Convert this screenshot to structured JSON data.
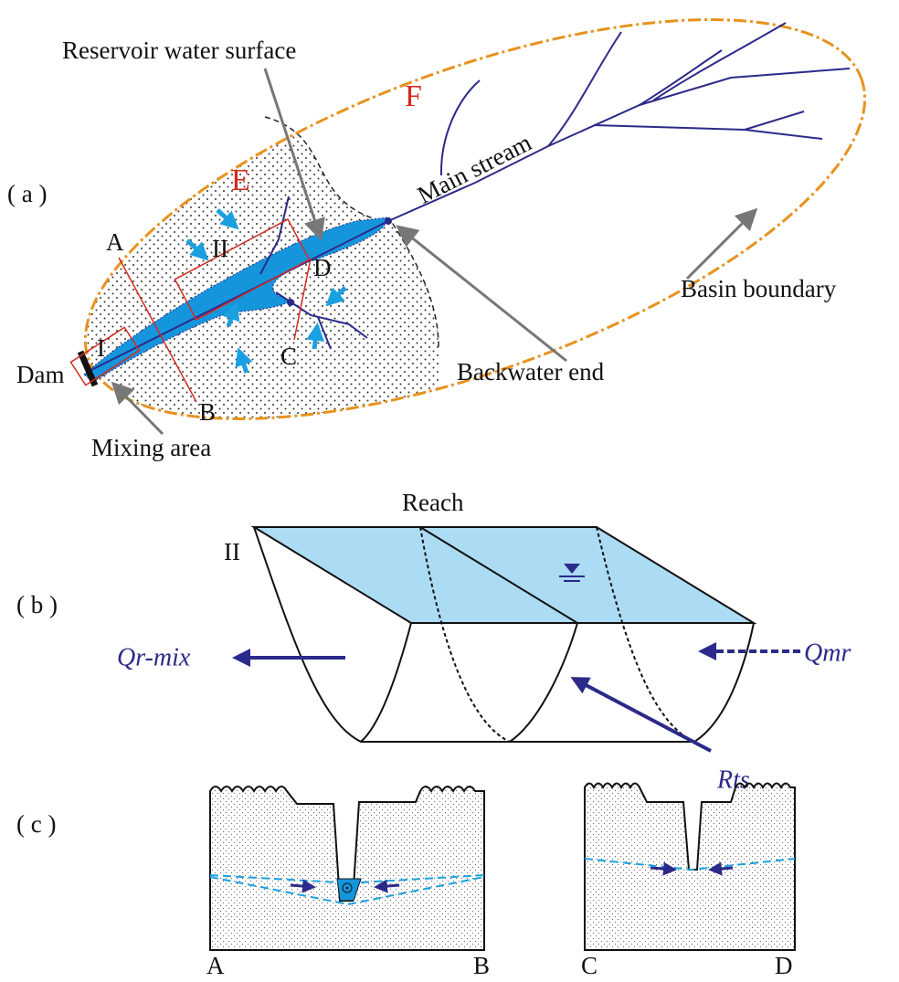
{
  "panel_a": {
    "label": "( a )",
    "zones": {
      "E": "E",
      "F": "F"
    },
    "sections": {
      "A": "A",
      "B": "B",
      "C": "C",
      "D": "D",
      "I": "I",
      "II": "II"
    },
    "annotations": {
      "reservoir_water_surface": "Reservoir water surface",
      "main_stream": "Main stream",
      "dam": "Dam",
      "mixing_area": "Mixing area",
      "backwater_end": "Backwater end",
      "basin_boundary": "Basin boundary"
    }
  },
  "panel_b": {
    "label": "( b )",
    "title": "Reach",
    "section": "II",
    "flows": {
      "outflow": "Qr-mix",
      "inflow": "Qmr",
      "tributary": "Rts"
    }
  },
  "panel_c": {
    "label": "( c )",
    "left_section": {
      "start": "A",
      "end": "B"
    },
    "right_section": {
      "start": "C",
      "end": "D"
    }
  }
}
